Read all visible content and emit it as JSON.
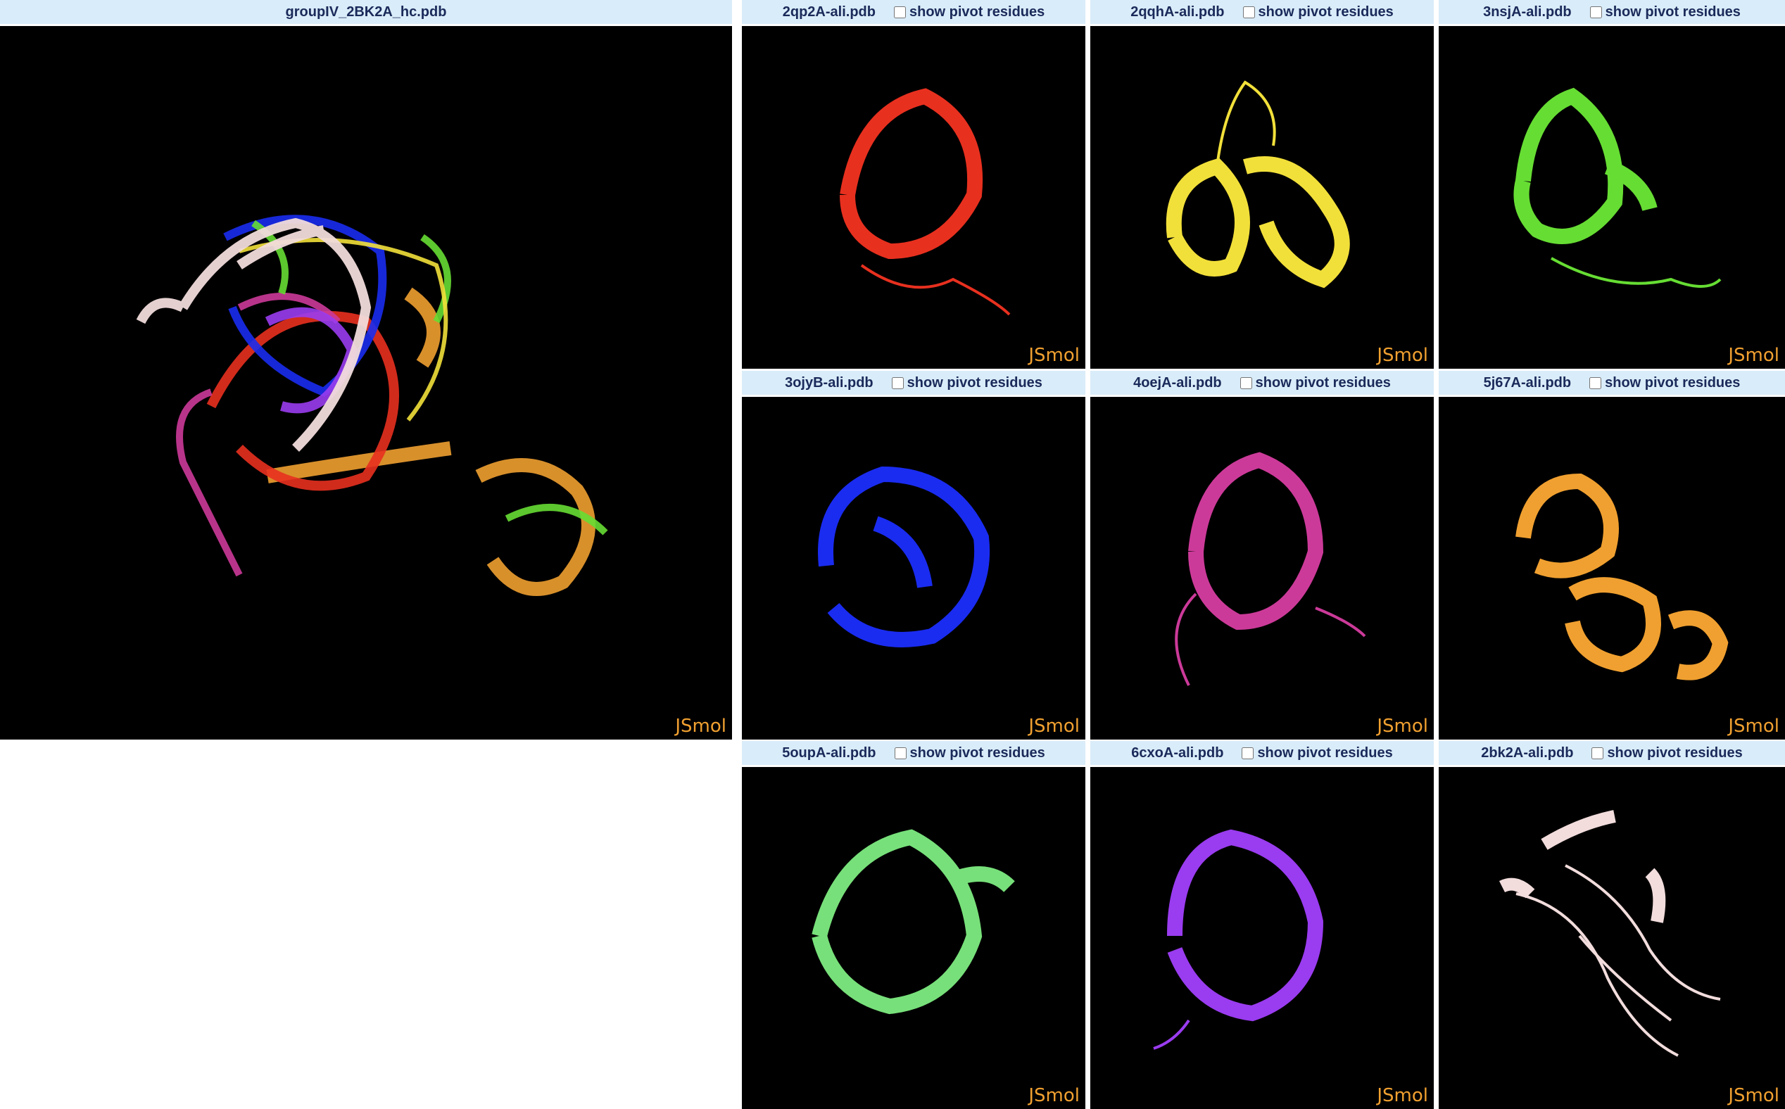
{
  "main_viewer": {
    "title": "groupIV_2BK2A_hc.pdb",
    "watermark": "JSmol"
  },
  "pivot_label": "show pivot residues",
  "panels": [
    {
      "file": "2qp2A-ali.pdb",
      "color": "#e8301f",
      "watermark": "JSmol"
    },
    {
      "file": "2qqhA-ali.pdb",
      "color": "#f2e03a",
      "watermark": "JSmol"
    },
    {
      "file": "3nsjA-ali.pdb",
      "color": "#66dd33",
      "watermark": "JSmol"
    },
    {
      "file": "3ojyB-ali.pdb",
      "color": "#1a2cf0",
      "watermark": "JSmol"
    },
    {
      "file": "4oejA-ali.pdb",
      "color": "#cc3a99",
      "watermark": "JSmol"
    },
    {
      "file": "5j67A-ali.pdb",
      "color": "#f0a030",
      "watermark": "JSmol"
    },
    {
      "file": "5oupA-ali.pdb",
      "color": "#77e07a",
      "watermark": "JSmol"
    },
    {
      "file": "6cxoA-ali.pdb",
      "color": "#9a3cf0",
      "watermark": "JSmol"
    },
    {
      "file": "2bk2A-ali.pdb",
      "color": "#f2dcdc",
      "watermark": "JSmol"
    }
  ]
}
